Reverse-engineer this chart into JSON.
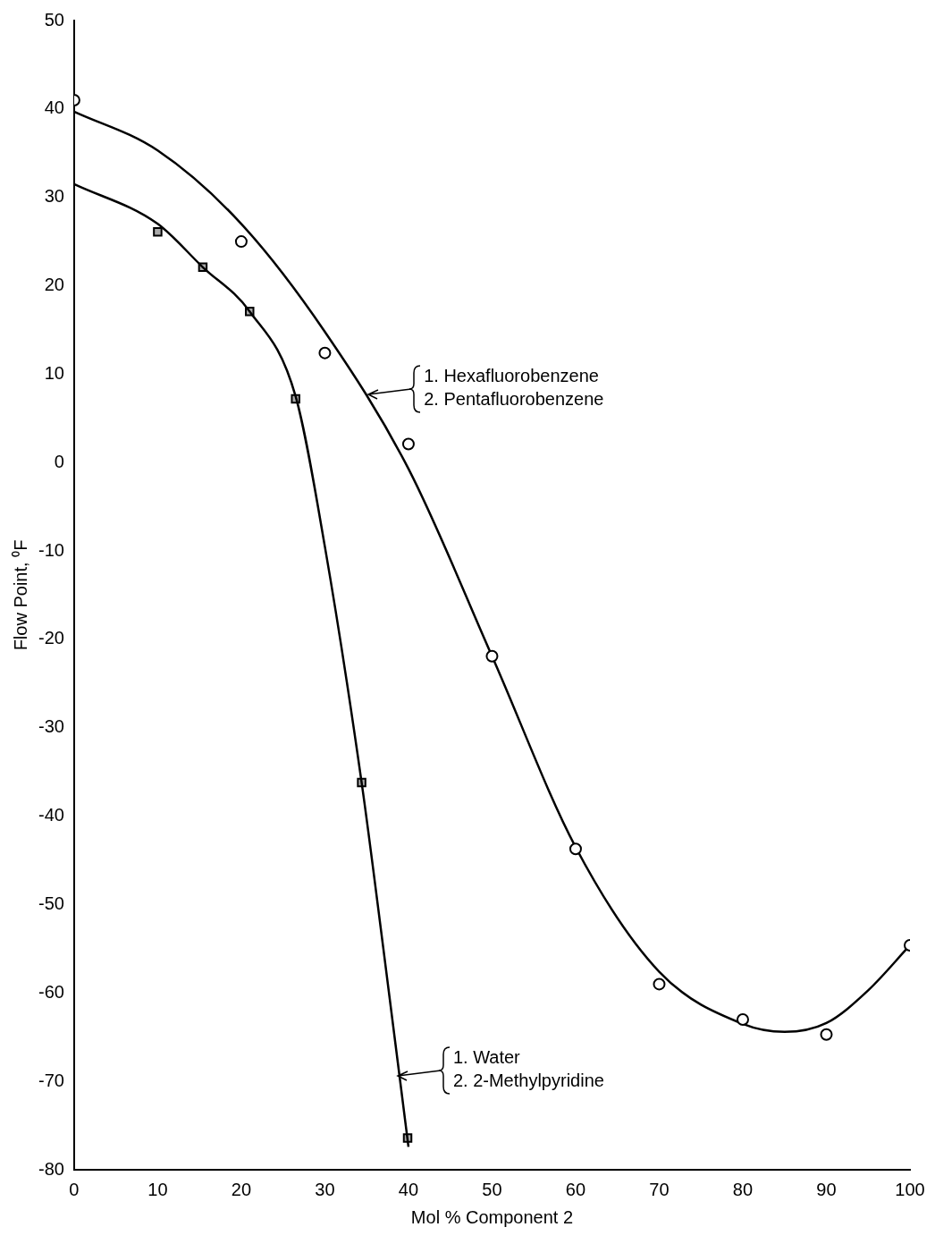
{
  "chart_data": {
    "type": "scatter",
    "xlabel": "Mol % Component 2",
    "ylabel": "Flow Point, ⁰F",
    "xlim": [
      0,
      100
    ],
    "xticks": [
      0,
      10,
      20,
      30,
      40,
      50,
      60,
      70,
      80,
      90,
      100
    ],
    "ylim": [
      -80,
      50
    ],
    "yticks": [
      -80,
      -70,
      -60,
      -50,
      -40,
      -30,
      -20,
      -10,
      0,
      10,
      20,
      30,
      40,
      50
    ],
    "grid": false,
    "legend": false,
    "series": [
      {
        "marker": "circle",
        "color": "#000000",
        "x": [
          0,
          20,
          30,
          40,
          50,
          60,
          70,
          80,
          90,
          100
        ],
        "values": [
          41,
          25,
          12.4,
          2.1,
          -21.9,
          -43.7,
          -59,
          -63,
          -64.7,
          -54.6
        ]
      },
      {
        "marker": "square",
        "color": "#000000",
        "x": [
          10,
          15.4,
          21,
          26.5,
          34.4,
          39.9
        ],
        "values": [
          26.1,
          22.1,
          17.1,
          7.2,
          -36.2,
          -76.4
        ]
      },
      {
        "type": "line",
        "marker": "none",
        "color": "#000000",
        "x": [
          0,
          10,
          20,
          30,
          40,
          50,
          60,
          70,
          80,
          85,
          90,
          95,
          100
        ],
        "values": [
          39.7,
          35.3,
          27,
          14.8,
          -0.7,
          -21.9,
          -43.5,
          -57.6,
          -63.5,
          -64.4,
          -63.4,
          -59.7,
          -54.6
        ]
      },
      {
        "type": "line",
        "marker": "none",
        "color": "#000000",
        "x": [
          0,
          10,
          15.4,
          21,
          26.5,
          30,
          34.4,
          37,
          40
        ],
        "values": [
          31.5,
          27,
          22.1,
          17.1,
          7.5,
          -9.5,
          -36.2,
          -55,
          -77.4
        ]
      }
    ],
    "annotations": [
      "1. Hexafluorobenzene\n2. Pentafluorobenzene",
      "1. Water\n2. 2-Methylpyridine"
    ]
  }
}
